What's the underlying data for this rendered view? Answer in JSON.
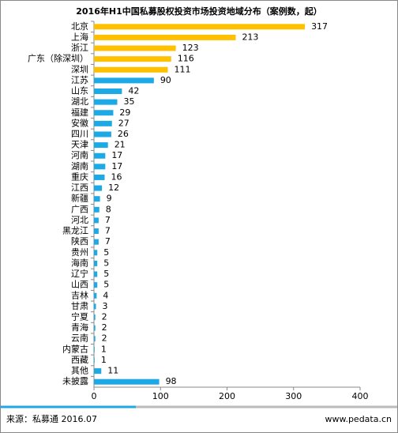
{
  "chart_data": {
    "type": "bar",
    "orientation": "horizontal",
    "title": "2016年H1中国私募股权投资市场投资地域分布（案例数，起）",
    "categories": [
      "北京",
      "上海",
      "浙江",
      "广东（除深圳）",
      "深圳",
      "江苏",
      "山东",
      "湖北",
      "福建",
      "安徽",
      "四川",
      "天津",
      "河南",
      "湖南",
      "重庆",
      "江西",
      "新疆",
      "广西",
      "河北",
      "黑龙江",
      "陕西",
      "贵州",
      "海南",
      "辽宁",
      "山西",
      "吉林",
      "甘肃",
      "宁夏",
      "青海",
      "云南",
      "内蒙古",
      "西藏",
      "其他",
      "未披露"
    ],
    "values": [
      317,
      213,
      123,
      116,
      111,
      90,
      42,
      35,
      29,
      27,
      26,
      21,
      17,
      17,
      16,
      12,
      9,
      8,
      7,
      7,
      7,
      5,
      5,
      5,
      5,
      4,
      3,
      2,
      2,
      2,
      1,
      1,
      11,
      98
    ],
    "colors": [
      "#FFC000",
      "#FFC000",
      "#FFC000",
      "#FFC000",
      "#FFC000",
      "#1CA9E6",
      "#1CA9E6",
      "#1CA9E6",
      "#1CA9E6",
      "#1CA9E6",
      "#1CA9E6",
      "#1CA9E6",
      "#1CA9E6",
      "#1CA9E6",
      "#1CA9E6",
      "#1CA9E6",
      "#1CA9E6",
      "#1CA9E6",
      "#1CA9E6",
      "#1CA9E6",
      "#1CA9E6",
      "#1CA9E6",
      "#1CA9E6",
      "#1CA9E6",
      "#1CA9E6",
      "#1CA9E6",
      "#1CA9E6",
      "#1CA9E6",
      "#1CA9E6",
      "#1CA9E6",
      "#1CA9E6",
      "#1CA9E6",
      "#1CA9E6",
      "#1CA9E6"
    ],
    "xlim": [
      0,
      400
    ],
    "xticks": [
      0,
      100,
      200,
      300,
      400
    ],
    "grid": false,
    "source": "来源：私募通 2016.07",
    "website": "www.pedata.cn"
  }
}
